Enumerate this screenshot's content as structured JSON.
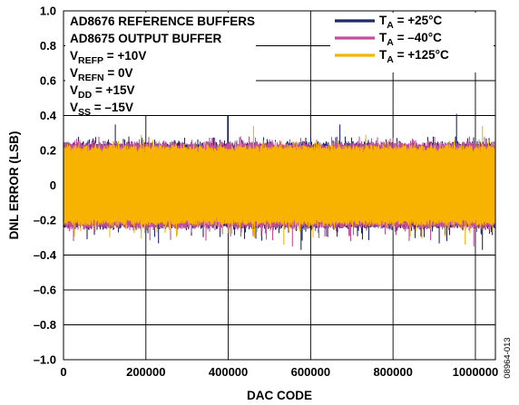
{
  "chart_data": {
    "type": "line",
    "xlabel": "DAC CODE",
    "ylabel": "DNL ERROR (LSB)",
    "xlim": [
      0,
      1048575
    ],
    "ylim": [
      -1.0,
      1.0
    ],
    "grid": true,
    "x_ticks": [
      0,
      200000,
      400000,
      600000,
      800000,
      1000000
    ],
    "x_tick_labels": [
      "0",
      "200000",
      "400000",
      "600000",
      "800000",
      "1000000"
    ],
    "y_ticks": [
      1.0,
      0.8,
      0.6,
      0.4,
      0.2,
      0,
      -0.2,
      -0.4,
      -0.6,
      -0.8,
      -1.0
    ],
    "y_tick_labels": [
      "1.0",
      "0.8",
      "0.6",
      "0.4",
      "0.2",
      "0",
      "–0.2",
      "–0.4",
      "–0.6",
      "–0.8",
      "–1.0"
    ],
    "legend_position": "top-right",
    "series": [
      {
        "name": "T_A = +25°C",
        "legend_sub": "A",
        "legend_rest": " = +25°C",
        "color": "#1f2a6b",
        "typical_range": [
          -0.23,
          0.23
        ],
        "max": 0.41,
        "min": -0.37
      },
      {
        "name": "T_A = –40°C",
        "legend_sub": "A",
        "legend_rest": " = –40°C",
        "color": "#c0509b",
        "typical_range": [
          -0.23,
          0.23
        ],
        "max": 0.28,
        "min": -0.35
      },
      {
        "name": "T_A = +125°C",
        "legend_sub": "A",
        "legend_rest": " = +125°C",
        "color": "#f7b300",
        "typical_range": [
          -0.21,
          0.21
        ],
        "max": 0.34,
        "min": -0.34
      }
    ],
    "annotations": [
      {
        "id": "line1",
        "main": "AD8676 REFERENCE BUFFERS",
        "sub": "",
        "rest": ""
      },
      {
        "id": "line2",
        "main": "AD8675 OUTPUT BUFFER",
        "sub": "",
        "rest": ""
      },
      {
        "id": "line3",
        "main": "V",
        "sub": "REFP",
        "rest": " = +10V"
      },
      {
        "id": "line4",
        "main": "V",
        "sub": "REFN",
        "rest": " = 0V"
      },
      {
        "id": "line5",
        "main": "V",
        "sub": "DD",
        "rest": " = +15V"
      },
      {
        "id": "line6",
        "main": "V",
        "sub": "SS",
        "rest": " = –15V"
      }
    ],
    "figure_id": "08964-013"
  }
}
